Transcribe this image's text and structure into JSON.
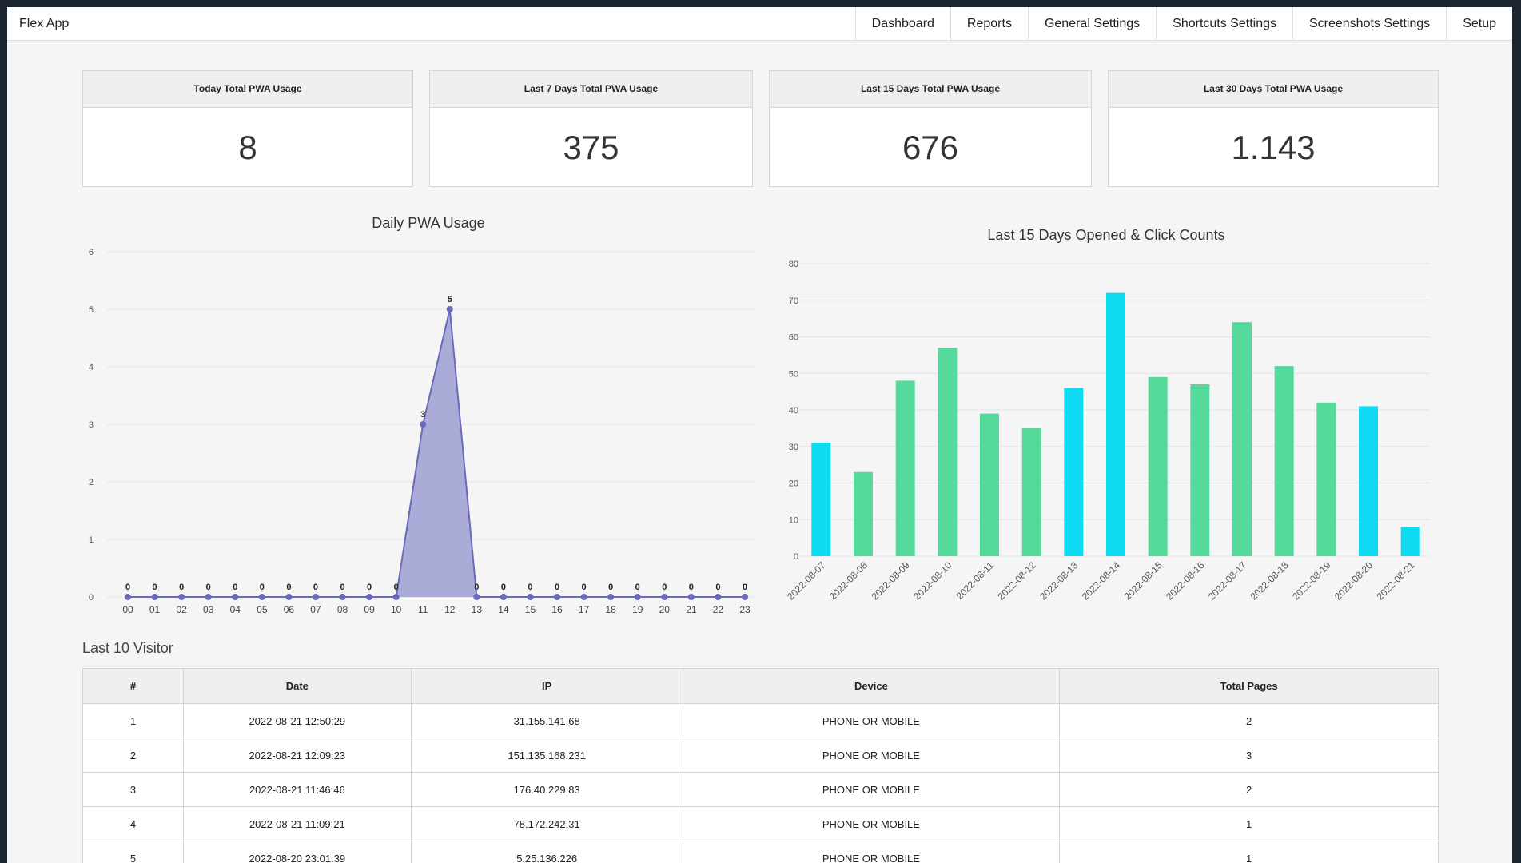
{
  "app": {
    "brand": "Flex App"
  },
  "nav": {
    "items": [
      "Dashboard",
      "Reports",
      "General Settings",
      "Shortcuts Settings",
      "Screenshots Settings",
      "Setup"
    ]
  },
  "stats": [
    {
      "label": "Today Total PWA Usage",
      "value": "8"
    },
    {
      "label": "Last 7 Days Total PWA Usage",
      "value": "375"
    },
    {
      "label": "Last 15 Days Total PWA Usage",
      "value": "676"
    },
    {
      "label": "Last 30 Days Total PWA Usage",
      "value": "1.143"
    }
  ],
  "chart_data": [
    {
      "type": "area",
      "title": "Daily PWA Usage",
      "x": [
        "00",
        "01",
        "02",
        "03",
        "04",
        "05",
        "06",
        "07",
        "08",
        "09",
        "10",
        "11",
        "12",
        "13",
        "14",
        "15",
        "16",
        "17",
        "18",
        "19",
        "20",
        "21",
        "22",
        "23"
      ],
      "values": [
        0,
        0,
        0,
        0,
        0,
        0,
        0,
        0,
        0,
        0,
        0,
        3,
        5,
        0,
        0,
        0,
        0,
        0,
        0,
        0,
        0,
        0,
        0,
        0
      ],
      "ylim": [
        0,
        6
      ],
      "yticks": [
        0,
        1,
        2,
        3,
        4,
        5,
        6
      ],
      "color": "#6a6aba",
      "fill": "#a7a7d6",
      "grid": true
    },
    {
      "type": "bar",
      "title": "Last 15 Days Opened & Click Counts",
      "categories": [
        "2022-08-07",
        "2022-08-08",
        "2022-08-09",
        "2022-08-10",
        "2022-08-11",
        "2022-08-12",
        "2022-08-13",
        "2022-08-14",
        "2022-08-15",
        "2022-08-16",
        "2022-08-17",
        "2022-08-18",
        "2022-08-19",
        "2022-08-20",
        "2022-08-21"
      ],
      "values": [
        31,
        23,
        48,
        57,
        39,
        35,
        46,
        72,
        49,
        47,
        64,
        52,
        42,
        41,
        8
      ],
      "colors": [
        "#0cdbf2",
        "#55da9b",
        "#55da9b",
        "#55da9b",
        "#55da9b",
        "#55da9b",
        "#0cdbf2",
        "#0cdbf2",
        "#55da9b",
        "#55da9b",
        "#55da9b",
        "#55da9b",
        "#55da9b",
        "#0cdbf2",
        "#0cdbf2"
      ],
      "ylim": [
        0,
        80
      ],
      "yticks": [
        0,
        10,
        20,
        30,
        40,
        50,
        60,
        70,
        80
      ],
      "grid": true
    }
  ],
  "visitors": {
    "title": "Last 10 Visitor",
    "columns": [
      "#",
      "Date",
      "IP",
      "Device",
      "Total Pages"
    ],
    "rows": [
      [
        "1",
        "2022-08-21 12:50:29",
        "31.155.141.68",
        "PHONE OR MOBILE",
        "2"
      ],
      [
        "2",
        "2022-08-21 12:09:23",
        "151.135.168.231",
        "PHONE OR MOBILE",
        "3"
      ],
      [
        "3",
        "2022-08-21 11:46:46",
        "176.40.229.83",
        "PHONE OR MOBILE",
        "2"
      ],
      [
        "4",
        "2022-08-21 11:09:21",
        "78.172.242.31",
        "PHONE OR MOBILE",
        "1"
      ],
      [
        "5",
        "2022-08-20 23:01:39",
        "5.25.136.226",
        "PHONE OR MOBILE",
        "1"
      ]
    ]
  }
}
